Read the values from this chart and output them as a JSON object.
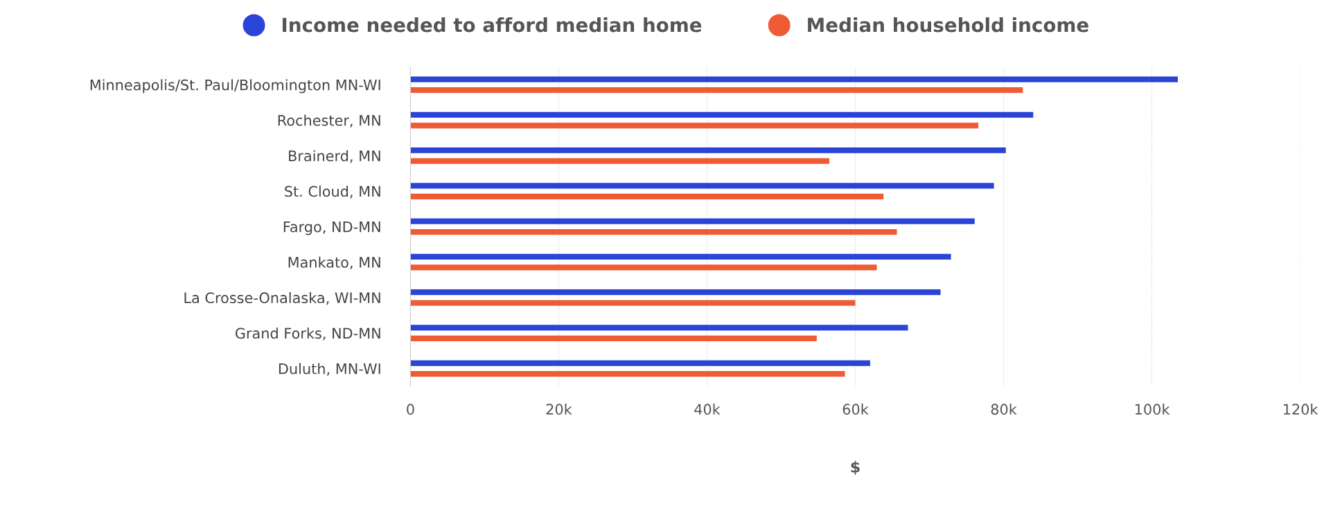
{
  "chart_data": {
    "type": "bar",
    "orientation": "horizontal",
    "xlabel": "$",
    "categories": [
      "Minneapolis/St. Paul/Bloomington MN-WI",
      "Rochester, MN",
      "Brainerd, MN",
      "St. Cloud, MN",
      "Fargo, ND-MN",
      "Mankato, MN",
      "La Crosse-Onalaska, WI-MN",
      "Grand Forks, ND-MN",
      "Duluth, MN-WI"
    ],
    "series": [
      {
        "name": "Income needed to afford median home",
        "color": "#2b44d8",
        "values": [
          103500,
          84000,
          80300,
          78700,
          76100,
          72900,
          71500,
          67100,
          62000
        ]
      },
      {
        "name": "Median household income",
        "color": "#ee5b35",
        "values": [
          82600,
          76600,
          56500,
          63800,
          65600,
          62900,
          60000,
          54800,
          58600
        ]
      }
    ],
    "xlim": [
      0,
      120000
    ],
    "xticks": [
      {
        "value": 0,
        "label": "0"
      },
      {
        "value": 20000,
        "label": "20k"
      },
      {
        "value": 40000,
        "label": "40k"
      },
      {
        "value": 60000,
        "label": "60k"
      },
      {
        "value": 80000,
        "label": "80k"
      },
      {
        "value": 100000,
        "label": "100k"
      },
      {
        "value": 120000,
        "label": "120k"
      }
    ],
    "grid": "x",
    "legend": "top"
  }
}
